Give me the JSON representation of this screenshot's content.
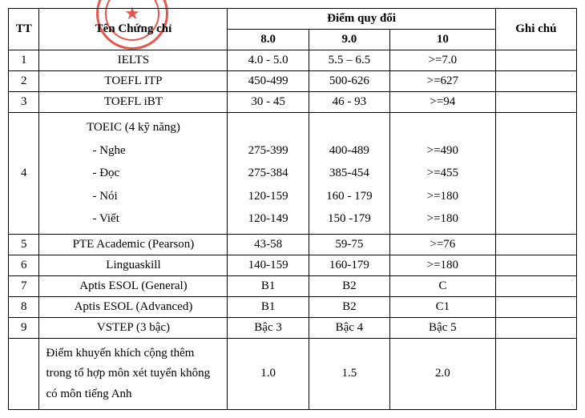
{
  "headers": {
    "tt": "TT",
    "name": "Tên Chứng chỉ",
    "score_group": "Điểm quy đổi",
    "s8": "8.0",
    "s9": "9.0",
    "s10": "10",
    "note": "Ghi chú"
  },
  "rows": {
    "r1": {
      "tt": "1",
      "name": "IELTS",
      "s8": "4.0 - 5.0",
      "s9": "5.5 – 6.5",
      "s10": ">=7.0"
    },
    "r2": {
      "tt": "2",
      "name": "TOEFL ITP",
      "s8": "450-499",
      "s9": "500-626",
      "s10": ">=627"
    },
    "r3": {
      "tt": "3",
      "name": "TOEFL iBT",
      "s8": "30 - 45",
      "s9": "46 - 93",
      "s10": ">=94"
    },
    "r4": {
      "tt": "4",
      "title": "TOEIC (4 kỹ năng)",
      "nghe": "- Nghe",
      "doc": "- Đọc",
      "noi": "- Nói",
      "viet": "- Viết",
      "s8_nghe": "275-399",
      "s8_doc": "275-384",
      "s8_noi": "120-159",
      "s8_viet": "120-149",
      "s9_nghe": "400-489",
      "s9_doc": "385-454",
      "s9_noi": "160 - 179",
      "s9_viet": "150 -179",
      "s10_nghe": ">=490",
      "s10_doc": ">=455",
      "s10_noi": ">=180",
      "s10_viet": ">=180"
    },
    "r5": {
      "tt": "5",
      "name": "PTE Academic (Pearson)",
      "s8": "43-58",
      "s9": "59-75",
      "s10": ">=76"
    },
    "r6": {
      "tt": "6",
      "name": "Linguaskill",
      "s8": "140-159",
      "s9": "160-179",
      "s10": ">=180"
    },
    "r7": {
      "tt": "7",
      "name": "Aptis ESOL (General)",
      "s8": "B1",
      "s9": "B2",
      "s10": "C"
    },
    "r8": {
      "tt": "8",
      "name": "Aptis ESOL (Advanced)",
      "s8": "B1",
      "s9": "B2",
      "s10": "C1"
    },
    "r9": {
      "tt": "9",
      "name": "VSTEP (3 bậc)",
      "s8": "Bậc 3",
      "s9": "Bậc 4",
      "s10": "Bậc 5"
    },
    "bonus": {
      "name": "Điểm khuyến khích cộng thêm trong tổ hợp môn xét tuyển không có môn tiếng Anh",
      "s8": "1.0",
      "s9": "1.5",
      "s10": "2.0"
    }
  },
  "style": {
    "font_family": "Times New Roman",
    "font_size_pt": 12,
    "border_color": "#000000",
    "stamp_color": "#e03a2f",
    "background": "#ffffff"
  }
}
